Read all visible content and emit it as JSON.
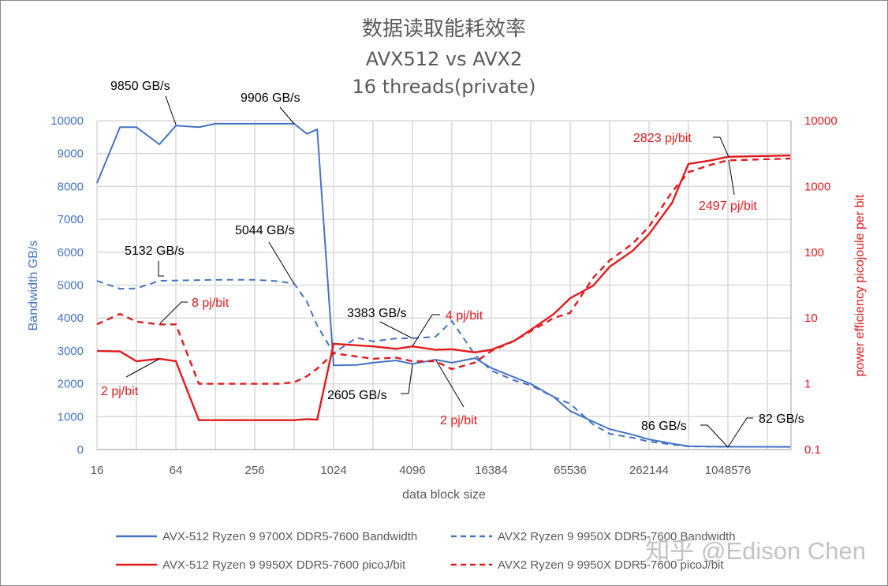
{
  "chart_data": {
    "type": "line",
    "title": [
      "数据读取能耗效率",
      "AVX512 vs AVX2",
      "16 threads(private)"
    ],
    "xlabel": "data block size",
    "ylabel": "Bandwidth GB/s",
    "y2label": "power efficiency picojoule per bit",
    "x_scale": "log2",
    "y2_scale": "log10",
    "ylim": [
      0,
      10000
    ],
    "y2lim": [
      0.1,
      10000
    ],
    "x_ticks": [
      "16",
      "64",
      "256",
      "1024",
      "4096",
      "16384",
      "65536",
      "262144",
      "1048576"
    ],
    "y_ticks": [
      "0",
      "1000",
      "2000",
      "3000",
      "4000",
      "5000",
      "6000",
      "7000",
      "8000",
      "9000",
      "10000"
    ],
    "y2_ticks": [
      "0.1",
      "1",
      "10",
      "100",
      "1000",
      "10000"
    ],
    "grid": true,
    "legend_position": "bottom",
    "x": [
      16,
      24,
      32,
      48,
      64,
      96,
      128,
      192,
      256,
      384,
      512,
      640,
      768,
      1024,
      1536,
      2048,
      3072,
      4096,
      6144,
      8192,
      12288,
      16384,
      24576,
      32768,
      49152,
      65536,
      98304,
      131072,
      196608,
      262144,
      393216,
      524288,
      786432,
      1048576,
      1572864,
      2097152,
      3145728
    ],
    "series": [
      {
        "name": "AVX-512 Ryzen 9 9700X DDR5-7600 Bandwidth",
        "axis": "left",
        "style": "solid",
        "color": "#4472C4",
        "values": [
          8100,
          9800,
          9800,
          9280,
          9850,
          9800,
          9906,
          9906,
          9906,
          9906,
          9906,
          9600,
          9736,
          2560,
          2570,
          2640,
          2710,
          2605,
          2735,
          2640,
          2780,
          2480,
          2200,
          2000,
          1600,
          1170,
          850,
          620,
          450,
          310,
          180,
          100,
          90,
          86,
          84,
          83,
          82
        ]
      },
      {
        "name": "AVX2 Ryzen 9 9950X DDR5-7600 Bandwidth",
        "axis": "left",
        "style": "dashed",
        "color": "#4472C4",
        "values": [
          5130,
          4890,
          4900,
          5132,
          5140,
          5150,
          5160,
          5160,
          5160,
          5120,
          5044,
          4500,
          3770,
          2930,
          3400,
          3290,
          3380,
          3383,
          3430,
          3910,
          2880,
          2400,
          2100,
          1950,
          1600,
          1390,
          760,
          480,
          360,
          240,
          150,
          95,
          88,
          86,
          85,
          84,
          84
        ]
      },
      {
        "name": "AVX-512 Ryzen 9 9950X DDR5-7600 picoJ/bit",
        "axis": "right",
        "style": "solid",
        "color": "#E31A1C",
        "values": [
          3.15,
          3.1,
          2.2,
          2.4,
          2.2,
          0.28,
          0.28,
          0.28,
          0.28,
          0.28,
          0.28,
          0.29,
          0.285,
          4.05,
          3.85,
          3.7,
          3.4,
          3.7,
          3.3,
          3.35,
          3.0,
          3.3,
          4.5,
          6.6,
          11.5,
          20,
          31,
          60,
          105,
          188,
          565,
          2200,
          2500,
          2823,
          2870,
          2900,
          2960
        ]
      },
      {
        "name": "AVX2 Ryzen 9 9950X DDR5-7600 picoJ/bit",
        "axis": "right",
        "style": "dashed",
        "color": "#E31A1C",
        "values": [
          8.05,
          11.5,
          8.8,
          8,
          8,
          1.0,
          1.0,
          1.0,
          1.0,
          1.0,
          1.05,
          1.3,
          1.7,
          2.9,
          2.6,
          2.4,
          2.5,
          2.2,
          2.2,
          1.67,
          2.1,
          3.15,
          4.5,
          6.3,
          10,
          12,
          41,
          75,
          135,
          245,
          830,
          1650,
          2150,
          2497,
          2550,
          2600,
          2660
        ]
      }
    ],
    "annotations": [
      {
        "text": "9850 GB/s",
        "color": "#000000"
      },
      {
        "text": "9906 GB/s",
        "color": "#000000"
      },
      {
        "text": "5132 GB/s",
        "color": "#000000"
      },
      {
        "text": "5044 GB/s",
        "color": "#000000"
      },
      {
        "text": "8 pj/bit",
        "color": "#E31A1C"
      },
      {
        "text": "2 pj/bit",
        "color": "#E31A1C"
      },
      {
        "text": "3383 GB/s",
        "color": "#000000"
      },
      {
        "text": "4 pj/bit",
        "color": "#E31A1C"
      },
      {
        "text": "2605 GB/s",
        "color": "#000000"
      },
      {
        "text": "2 pj/bit",
        "color": "#E31A1C"
      },
      {
        "text": "2823 pj/bit",
        "color": "#E31A1C"
      },
      {
        "text": "2497 pj/bit",
        "color": "#E31A1C"
      },
      {
        "text": "86 GB/s",
        "color": "#000000"
      },
      {
        "text": "82 GB/s",
        "color": "#000000"
      }
    ],
    "left_axis_color": "#4472C4",
    "right_axis_color": "#E31A1C"
  },
  "watermark": "知乎 @Edison Chen"
}
